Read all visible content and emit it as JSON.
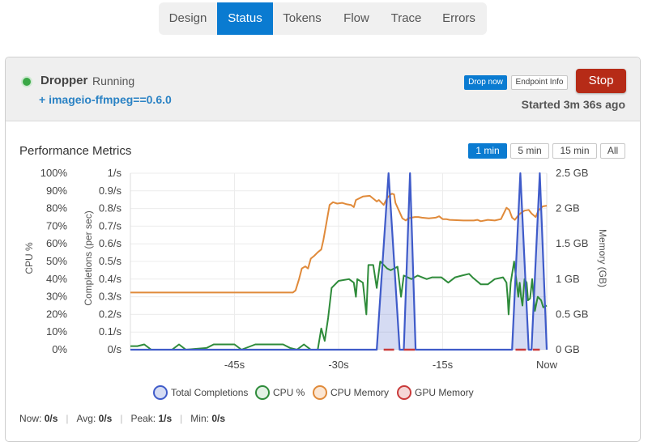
{
  "tabs": [
    {
      "label": "Design",
      "active": false
    },
    {
      "label": "Status",
      "active": true
    },
    {
      "label": "Tokens",
      "active": false
    },
    {
      "label": "Flow",
      "active": false
    },
    {
      "label": "Trace",
      "active": false
    },
    {
      "label": "Errors",
      "active": false
    }
  ],
  "process": {
    "name": "Dropper",
    "state": "Running",
    "package": "+ imageio-ffmpeg==0.6.0",
    "drop_now_label": "Drop now",
    "endpoint_info_label": "Endpoint Info",
    "stop_label": "Stop",
    "started": "Started 3m 36s ago",
    "status_color": "#3aa846"
  },
  "metrics": {
    "title": "Performance Metrics",
    "ranges": [
      "1 min",
      "5 min",
      "15 min",
      "All"
    ],
    "selected_range": "1 min"
  },
  "chart_data": {
    "type": "line",
    "title": "",
    "x_range": [
      -60,
      0
    ],
    "x_ticks": [
      {
        "value": -45,
        "label": "-45s"
      },
      {
        "value": -30,
        "label": "-30s"
      },
      {
        "value": -15,
        "label": "-15s"
      },
      {
        "value": 0,
        "label": "Now"
      }
    ],
    "grid": true,
    "legend_placement": "bottom",
    "axes": [
      {
        "id": "cpu",
        "label": "CPU %",
        "range": [
          0,
          100
        ],
        "ticks": [
          "0%",
          "10%",
          "20%",
          "30%",
          "40%",
          "50%",
          "60%",
          "70%",
          "80%",
          "90%",
          "100%"
        ]
      },
      {
        "id": "completions",
        "label": "Completions (per sec)",
        "range": [
          0,
          1
        ],
        "ticks": [
          "0/s",
          "0.1/s",
          "0.2/s",
          "0.3/s",
          "0.4/s",
          "0.5/s",
          "0.6/s",
          "0.7/s",
          "0.8/s",
          "0.9/s",
          "1/s"
        ]
      },
      {
        "id": "memory",
        "label": "Memory (GB)",
        "range": [
          0,
          2.5
        ],
        "ticks": [
          "0 GB",
          "0.5 GB",
          "1 GB",
          "1.5 GB",
          "2 GB",
          "2.5 GB"
        ]
      }
    ],
    "series": [
      {
        "name": "Total Completions",
        "axis": "completions",
        "color": "#3f5bc9",
        "fill": "rgba(63,91,201,0.22)",
        "points": [
          [
            -60,
            0
          ],
          [
            -24.5,
            0
          ],
          [
            -22.8,
            1
          ],
          [
            -21.2,
            0
          ],
          [
            -20.6,
            0
          ],
          [
            -19.7,
            1
          ],
          [
            -18.9,
            0
          ],
          [
            -5,
            0
          ],
          [
            -3.8,
            1
          ],
          [
            -2.6,
            0
          ],
          [
            -2.2,
            0
          ],
          [
            -1,
            1
          ],
          [
            0,
            0
          ]
        ]
      },
      {
        "name": "CPU %",
        "axis": "cpu",
        "color": "#2e8b3a",
        "fill": "none",
        "points": [
          [
            -60,
            2
          ],
          [
            -59,
            2
          ],
          [
            -58,
            3
          ],
          [
            -57,
            0
          ],
          [
            -54,
            0
          ],
          [
            -53,
            3
          ],
          [
            -52,
            0
          ],
          [
            -49,
            1
          ],
          [
            -48,
            3
          ],
          [
            -45,
            3
          ],
          [
            -44,
            0
          ],
          [
            -42,
            3
          ],
          [
            -38,
            3
          ],
          [
            -37,
            1
          ],
          [
            -36,
            0
          ],
          [
            -35,
            3
          ],
          [
            -34,
            0
          ],
          [
            -33,
            0
          ],
          [
            -32.5,
            12
          ],
          [
            -32,
            5
          ],
          [
            -31.5,
            18
          ],
          [
            -31,
            35
          ],
          [
            -30,
            39
          ],
          [
            -28.5,
            40
          ],
          [
            -27.8,
            38
          ],
          [
            -27.5,
            30
          ],
          [
            -27.3,
            40
          ],
          [
            -26.5,
            38
          ],
          [
            -26,
            20
          ],
          [
            -25.7,
            48
          ],
          [
            -25,
            48
          ],
          [
            -24.5,
            35
          ],
          [
            -24,
            50
          ],
          [
            -23,
            46
          ],
          [
            -22.5,
            45
          ],
          [
            -21.5,
            47
          ],
          [
            -21,
            30
          ],
          [
            -20.6,
            42
          ],
          [
            -19.5,
            40
          ],
          [
            -18.6,
            42
          ],
          [
            -17.3,
            40
          ],
          [
            -16.5,
            41
          ],
          [
            -15.2,
            41
          ],
          [
            -14.2,
            38
          ],
          [
            -13.2,
            41
          ],
          [
            -12.2,
            42
          ],
          [
            -11.2,
            43
          ],
          [
            -10.7,
            41
          ],
          [
            -9.5,
            37
          ],
          [
            -8.5,
            37
          ],
          [
            -7.5,
            40
          ],
          [
            -6.3,
            41
          ],
          [
            -5.8,
            38
          ],
          [
            -5.6,
            28
          ],
          [
            -5.5,
            20
          ],
          [
            -5.2,
            38
          ],
          [
            -4.7,
            50
          ],
          [
            -4.4,
            40
          ],
          [
            -4.1,
            30
          ],
          [
            -3.9,
            38
          ],
          [
            -3.7,
            30
          ],
          [
            -3.5,
            25
          ],
          [
            -3.2,
            40
          ],
          [
            -2.9,
            38
          ],
          [
            -2.7,
            28
          ],
          [
            -2.4,
            29
          ],
          [
            -2.1,
            40
          ],
          [
            -1.7,
            22
          ],
          [
            -1.3,
            30
          ],
          [
            -0.8,
            28
          ],
          [
            -0.5,
            24
          ],
          [
            0,
            25
          ]
        ]
      },
      {
        "name": "CPU Memory",
        "axis": "memory",
        "color": "#e08a3a",
        "fill": "none",
        "points": [
          [
            -60,
            0.81
          ],
          [
            -36.6,
            0.81
          ],
          [
            -36.2,
            0.84
          ],
          [
            -35.7,
            1.0
          ],
          [
            -35.3,
            1.15
          ],
          [
            -34.8,
            1.18
          ],
          [
            -34.4,
            1.15
          ],
          [
            -34,
            1.29
          ],
          [
            -33.5,
            1.33
          ],
          [
            -33,
            1.38
          ],
          [
            -32.5,
            1.42
          ],
          [
            -32.2,
            1.55
          ],
          [
            -31.8,
            1.77
          ],
          [
            -31.3,
            2.05
          ],
          [
            -30.8,
            2.09
          ],
          [
            -30.2,
            2.07
          ],
          [
            -29.5,
            2.08
          ],
          [
            -28.8,
            2.06
          ],
          [
            -28.2,
            2.05
          ],
          [
            -27.8,
            2.02
          ],
          [
            -27.5,
            2.12
          ],
          [
            -26.5,
            2.17
          ],
          [
            -25.5,
            2.18
          ],
          [
            -24.5,
            2.1
          ],
          [
            -24.2,
            2.12
          ],
          [
            -23.5,
            2.05
          ],
          [
            -23,
            2.15
          ],
          [
            -22.5,
            2.2
          ],
          [
            -22.3,
            2.21
          ],
          [
            -22,
            2.2
          ],
          [
            -21.8,
            2.08
          ],
          [
            -21.3,
            1.97
          ],
          [
            -20.8,
            1.86
          ],
          [
            -20.3,
            1.83
          ],
          [
            -20,
            1.86
          ],
          [
            -19.5,
            1.87
          ],
          [
            -19,
            1.88
          ],
          [
            -18.5,
            1.88
          ],
          [
            -18,
            1.87
          ],
          [
            -17,
            1.86
          ],
          [
            -16,
            1.87
          ],
          [
            -15.5,
            1.89
          ],
          [
            -15,
            1.85
          ],
          [
            -14.5,
            1.85
          ],
          [
            -14,
            1.84
          ],
          [
            -12,
            1.83
          ],
          [
            -10.5,
            1.83
          ],
          [
            -10,
            1.84
          ],
          [
            -9.5,
            1.82
          ],
          [
            -8.5,
            1.84
          ],
          [
            -7.5,
            1.83
          ],
          [
            -6.6,
            1.85
          ],
          [
            -6.2,
            1.93
          ],
          [
            -5.8,
            2.01
          ],
          [
            -5.4,
            1.98
          ],
          [
            -5.0,
            1.87
          ],
          [
            -4.6,
            1.84
          ],
          [
            -4.2,
            1.89
          ],
          [
            -3.8,
            1.93
          ],
          [
            -3.2,
            1.97
          ],
          [
            -2.6,
            1.98
          ],
          [
            -2.2,
            1.93
          ],
          [
            -1.6,
            1.88
          ],
          [
            -1.2,
            1.97
          ],
          [
            -0.6,
            2.03
          ],
          [
            0,
            2.04
          ]
        ]
      },
      {
        "name": "GPU Memory",
        "axis": "memory",
        "color": "#c93a3a",
        "fill": "none",
        "points": [
          [
            -24.5,
            0
          ],
          [
            -18.9,
            0
          ],
          [
            -5,
            0
          ],
          [
            0,
            0
          ]
        ],
        "segments": [
          [
            [
              -23.5,
              0
            ],
            [
              -22,
              0
            ]
          ],
          [
            [
              -20.6,
              0
            ],
            [
              -19,
              0
            ]
          ],
          [
            [
              -4.5,
              0
            ],
            [
              -3,
              0
            ]
          ],
          [
            [
              -2,
              0
            ],
            [
              -1,
              0
            ]
          ]
        ]
      }
    ]
  },
  "legend": [
    {
      "name": "Total Completions",
      "color": "#3f5bc9",
      "fill": "#d5dcf3"
    },
    {
      "name": "CPU %",
      "color": "#2e8b3a",
      "fill": "#e3f1e5"
    },
    {
      "name": "CPU Memory",
      "color": "#e08a3a",
      "fill": "#fbe6d3"
    },
    {
      "name": "GPU Memory",
      "color": "#c93a3a",
      "fill": "#f5d7d7"
    }
  ],
  "stats": {
    "now_label": "Now:",
    "now_value": "0/s",
    "avg_label": "Avg:",
    "avg_value": "0/s",
    "peak_label": "Peak:",
    "peak_value": "1/s",
    "min_label": "Min:",
    "min_value": "0/s"
  }
}
